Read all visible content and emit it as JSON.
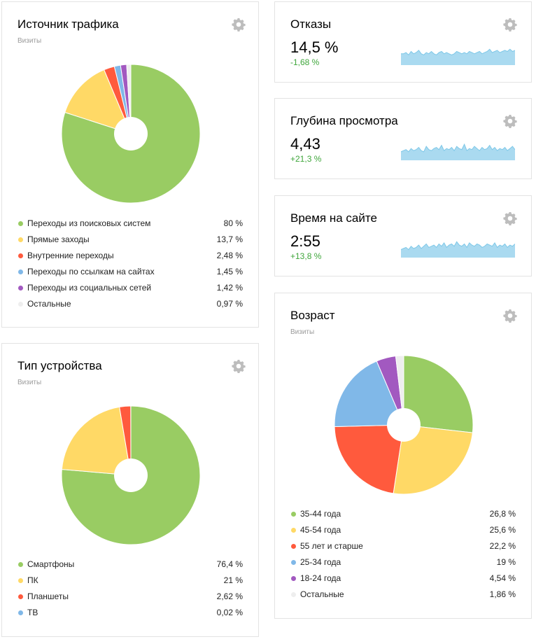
{
  "colors": {
    "up": "#3fa63b",
    "down": "#3fa63b",
    "spark_fill": "#aadaf0",
    "spark_line": "#7ec8e8"
  },
  "traffic": {
    "title": "Источник трафика",
    "subtitle": "Визиты",
    "chart_data": {
      "type": "pie",
      "items": [
        {
          "label": "Переходы из поисковых систем",
          "value": 80,
          "display": "80 %",
          "color": "#99cc63"
        },
        {
          "label": "Прямые заходы",
          "value": 13.7,
          "display": "13,7 %",
          "color": "#ffd966"
        },
        {
          "label": "Внутренние переходы",
          "value": 2.48,
          "display": "2,48 %",
          "color": "#ff5a3d"
        },
        {
          "label": "Переходы по ссылкам на сайтах",
          "value": 1.45,
          "display": "1,45 %",
          "color": "#80b8e8"
        },
        {
          "label": "Переходы из социальных сетей",
          "value": 1.42,
          "display": "1,42 %",
          "color": "#a259c0"
        },
        {
          "label": "Остальные",
          "value": 0.97,
          "display": "0,97 %",
          "color": "#eeeeee"
        }
      ]
    }
  },
  "devices": {
    "title": "Тип устройства",
    "subtitle": "Визиты",
    "chart_data": {
      "type": "pie",
      "items": [
        {
          "label": "Смартфоны",
          "value": 76.4,
          "display": "76,4 %",
          "color": "#99cc63"
        },
        {
          "label": "ПК",
          "value": 21,
          "display": "21 %",
          "color": "#ffd966"
        },
        {
          "label": "Планшеты",
          "value": 2.62,
          "display": "2,62 %",
          "color": "#ff5a3d"
        },
        {
          "label": "ТВ",
          "value": 0.02,
          "display": "0,02 %",
          "color": "#80b8e8"
        }
      ]
    }
  },
  "metrics": [
    {
      "title": "Отказы",
      "value": "14,5 %",
      "delta": "-1,68 %",
      "trend": "down",
      "spark": [
        10,
        10,
        11,
        9,
        12,
        10,
        11,
        13,
        10,
        9,
        11,
        10,
        12,
        10,
        9,
        11,
        12,
        10,
        11,
        10,
        9,
        10,
        12,
        11,
        10,
        11,
        10,
        12,
        11,
        10,
        11,
        12,
        10,
        11,
        12,
        14,
        11,
        12,
        13,
        11,
        12,
        13,
        12,
        14,
        12,
        13
      ]
    },
    {
      "title": "Глубина просмотра",
      "value": "4,43",
      "delta": "+21,3 %",
      "trend": "up",
      "spark": [
        8,
        9,
        10,
        8,
        11,
        9,
        10,
        12,
        9,
        8,
        13,
        10,
        9,
        11,
        12,
        10,
        14,
        9,
        11,
        10,
        12,
        9,
        13,
        11,
        10,
        15,
        9,
        11,
        10,
        13,
        11,
        9,
        12,
        10,
        11,
        14,
        10,
        12,
        9,
        11,
        10,
        12,
        9,
        11,
        13,
        10
      ]
    },
    {
      "title": "Время на сайте",
      "value": "2:55",
      "delta": "+13,8 %",
      "trend": "up",
      "spark": [
        7,
        8,
        9,
        7,
        10,
        8,
        9,
        11,
        8,
        10,
        12,
        9,
        10,
        11,
        9,
        12,
        10,
        13,
        9,
        11,
        12,
        10,
        14,
        11,
        10,
        12,
        9,
        13,
        11,
        10,
        12,
        11,
        9,
        10,
        12,
        11,
        10,
        13,
        9,
        11,
        10,
        12,
        9,
        11,
        10,
        12
      ]
    }
  ],
  "age": {
    "title": "Возраст",
    "subtitle": "Визиты",
    "chart_data": {
      "type": "pie",
      "items": [
        {
          "label": "35-44 года",
          "value": 26.8,
          "display": "26,8 %",
          "color": "#99cc63"
        },
        {
          "label": "45-54 года",
          "value": 25.6,
          "display": "25,6 %",
          "color": "#ffd966"
        },
        {
          "label": "55 лет и старше",
          "value": 22.2,
          "display": "22,2 %",
          "color": "#ff5a3d"
        },
        {
          "label": "25-34 года",
          "value": 19,
          "display": "19 %",
          "color": "#80b8e8"
        },
        {
          "label": "18-24 года",
          "value": 4.54,
          "display": "4,54 %",
          "color": "#a259c0"
        },
        {
          "label": "Остальные",
          "value": 1.86,
          "display": "1,86 %",
          "color": "#eeeeee"
        }
      ]
    }
  }
}
